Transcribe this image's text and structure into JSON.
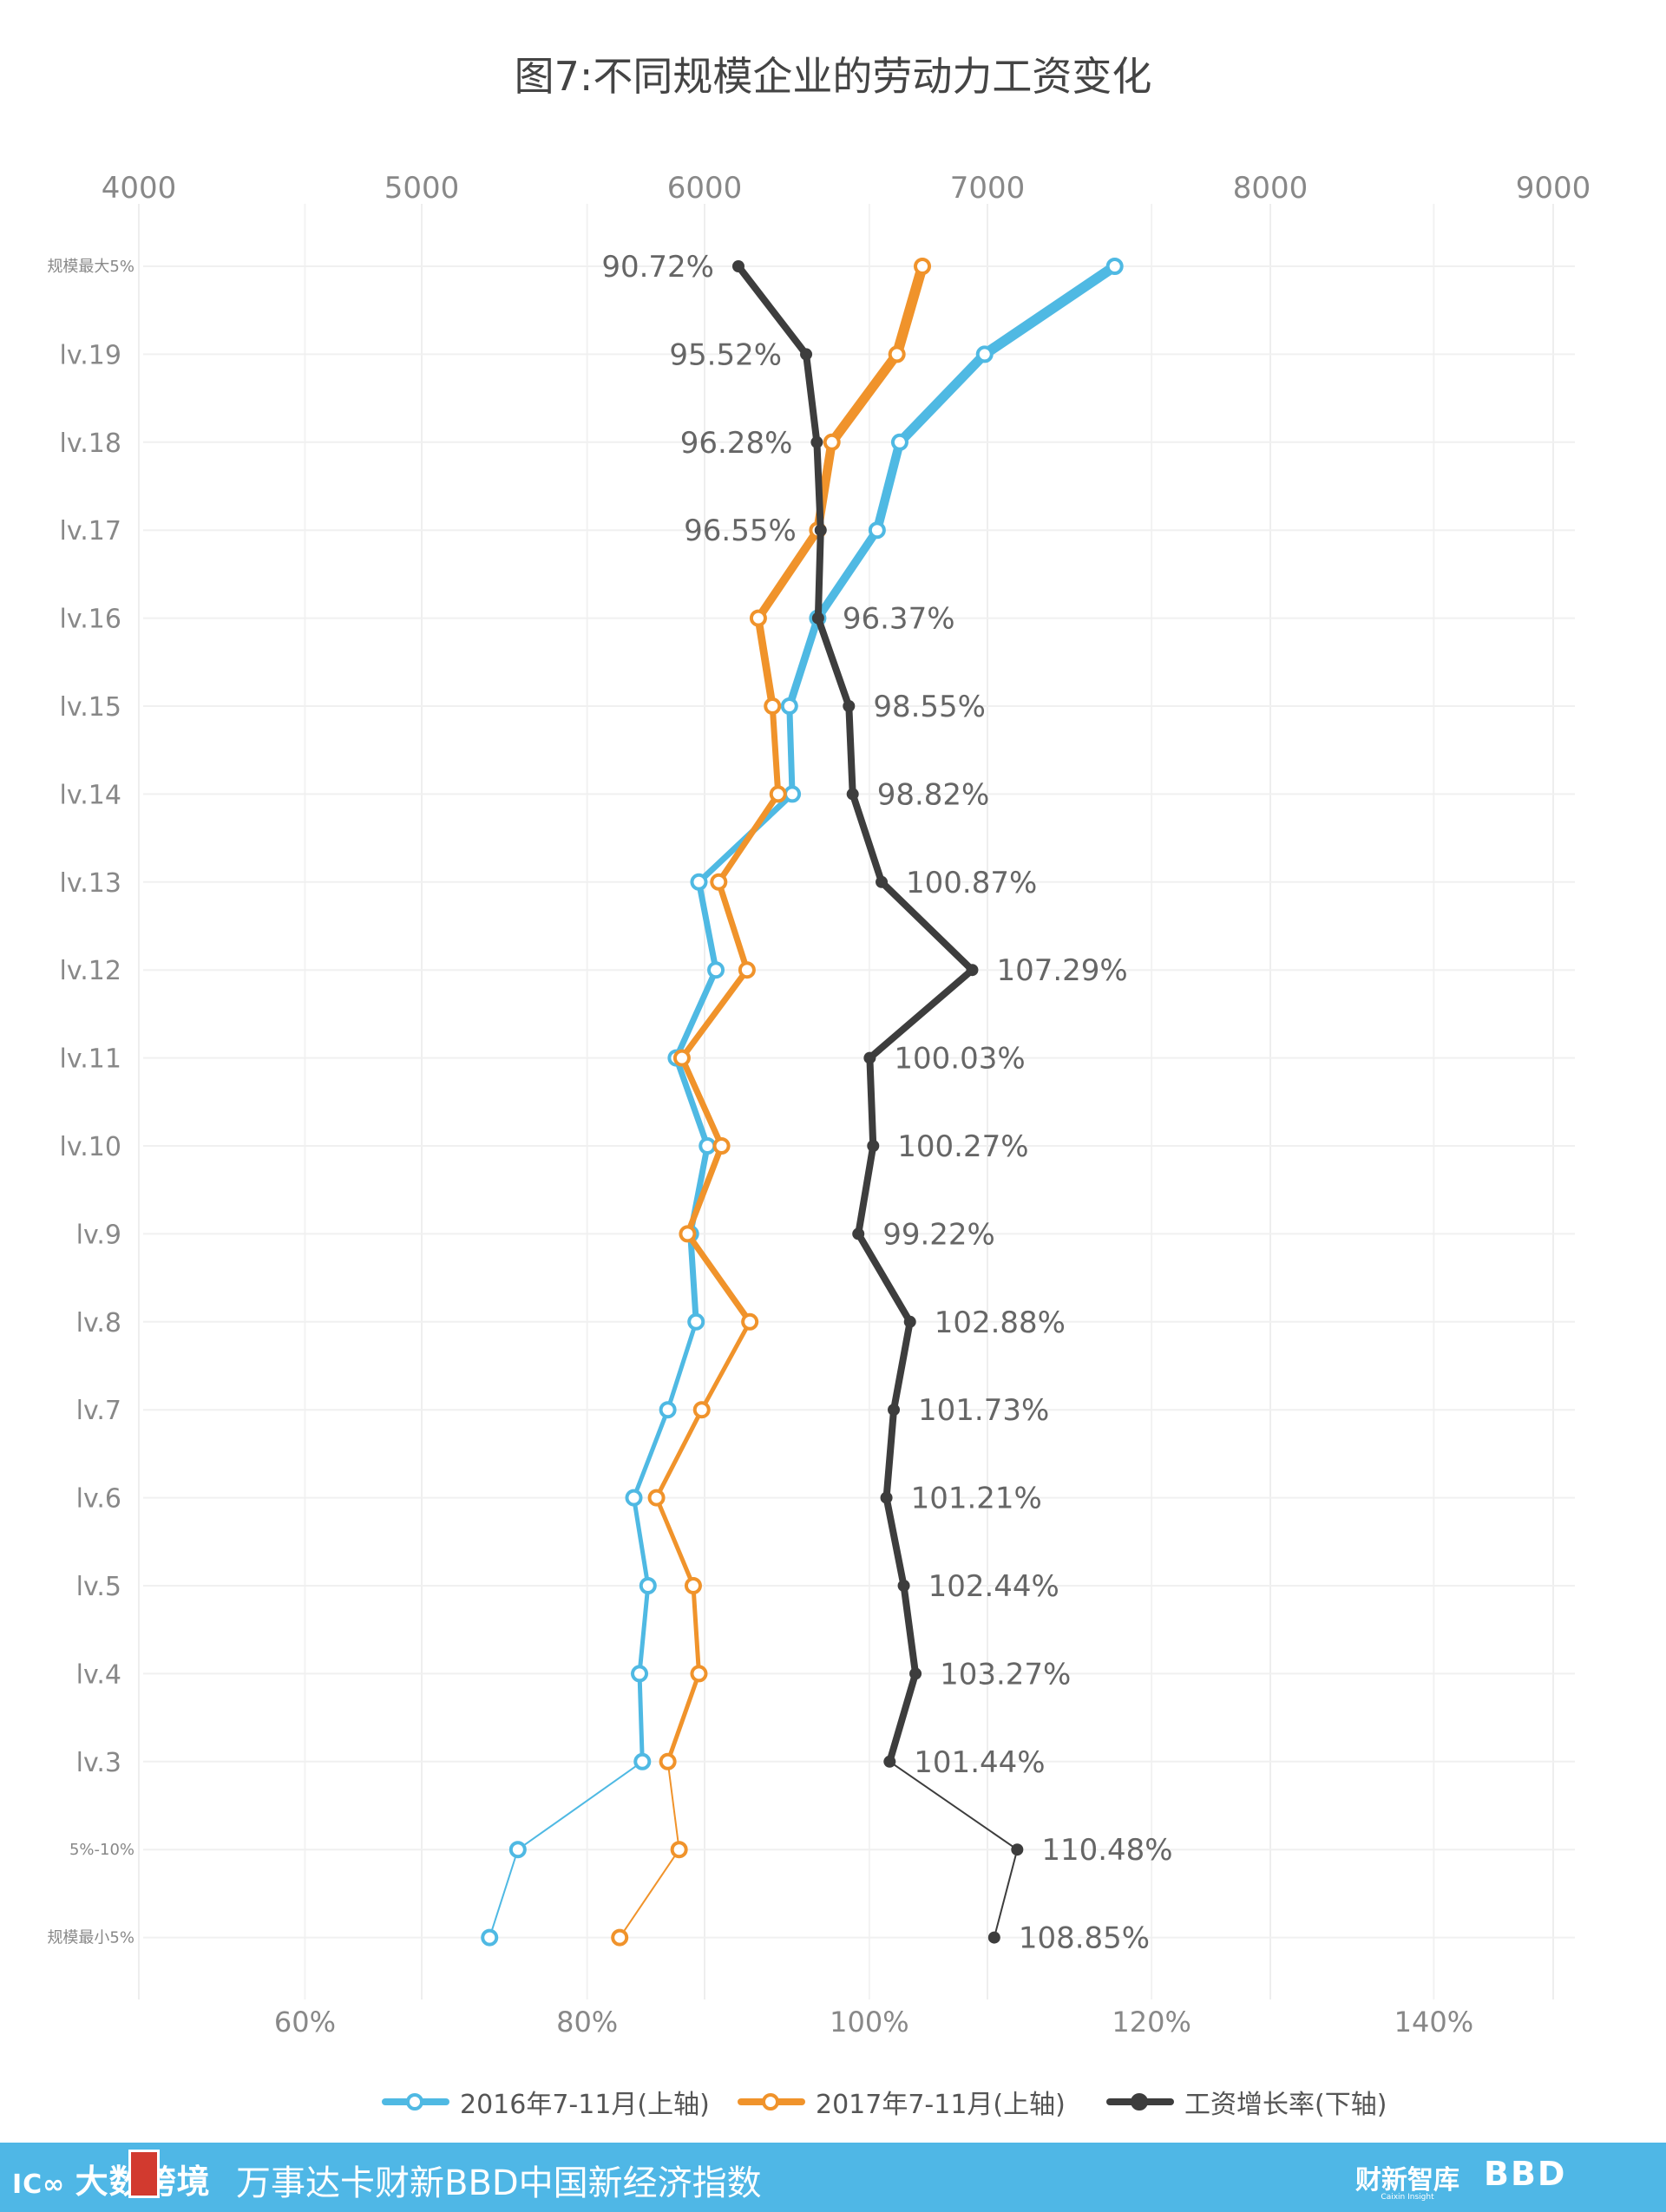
{
  "chart_data": {
    "type": "line",
    "title": "图7:不同规模企业的劳动力工资变化",
    "orientation": "horizontal-values-vertical-categories",
    "categories": [
      "规模最大5%",
      "lv.19",
      "lv.18",
      "lv.17",
      "lv.16",
      "lv.15",
      "lv.14",
      "lv.13",
      "lv.12",
      "lv.11",
      "lv.10",
      "lv.9",
      "lv.8",
      "lv.7",
      "lv.6",
      "lv.5",
      "lv.4",
      "lv.3",
      "5%-10%",
      "规模最小5%"
    ],
    "top_axis": {
      "range": [
        4000,
        9000
      ],
      "ticks": [
        "4000",
        "5000",
        "6000",
        "7000",
        "8000",
        "9000"
      ]
    },
    "bottom_axis": {
      "range": [
        0.47,
        1.5
      ],
      "ticks": [
        "60%",
        "80%",
        "100%",
        "120%",
        "140%"
      ],
      "tick_values": [
        0.6,
        0.8,
        1.0,
        1.2,
        1.4
      ]
    },
    "grid": true,
    "series": [
      {
        "name": "2016年7-11月(上轴)",
        "axis": "top",
        "color": "#4fb9e3",
        "values": [
          7450,
          6990,
          6690,
          6610,
          6400,
          6300,
          6310,
          5980,
          6040,
          5900,
          6010,
          5950,
          5970,
          5870,
          5750,
          5800,
          5770,
          5780,
          5340,
          5240
        ]
      },
      {
        "name": "2017年7-11月(上轴)",
        "axis": "top",
        "color": "#f0932b",
        "values": [
          6770,
          6680,
          6450,
          6400,
          6190,
          6240,
          6260,
          6050,
          6150,
          5920,
          6060,
          5940,
          6160,
          5990,
          5830,
          5960,
          5980,
          5870,
          5910,
          5700
        ]
      },
      {
        "name": "工资增长率(下轴)",
        "axis": "bottom",
        "color": "#3d3d3d",
        "values": [
          0.9072,
          0.9552,
          0.9628,
          0.9655,
          0.9637,
          0.9855,
          0.9882,
          1.0087,
          1.0729,
          1.0003,
          1.0027,
          0.9922,
          1.0288,
          1.0173,
          1.0121,
          1.0244,
          1.0327,
          1.0144,
          1.1048,
          1.0885
        ],
        "labels": [
          "90.72%",
          "95.52%",
          "96.28%",
          "96.55%",
          "96.37%",
          "98.55%",
          "98.82%",
          "100.87%",
          "107.29%",
          "100.03%",
          "100.27%",
          "99.22%",
          "102.88%",
          "101.73%",
          "101.21%",
          "102.44%",
          "103.27%",
          "101.44%",
          "110.48%",
          "108.85%"
        ]
      }
    ],
    "legend": "bottom"
  },
  "legend": {
    "item_2016": "2016年7-11月(上轴)",
    "item_2017": "2017年7-11月(上轴)",
    "item_growth": "工资增长率(下轴)"
  },
  "footer": {
    "logo_left": "大数跨境",
    "title": "万事达卡财新BBD中国新经济指数",
    "logo_right1": "财新智库",
    "logo_right1_sub": "Caixin Insight",
    "logo_right2": "BBD",
    "color": "#4fb7e6"
  }
}
